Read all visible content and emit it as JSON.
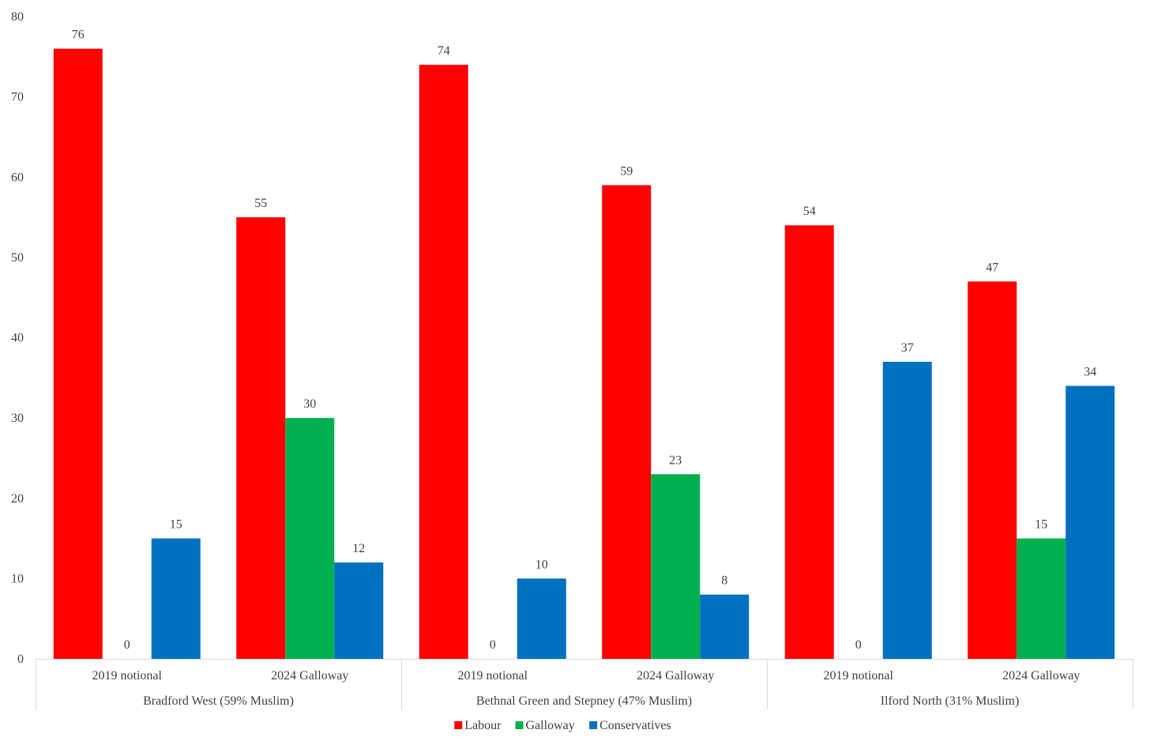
{
  "chart_data": {
    "type": "bar",
    "title": "",
    "xlabel": "",
    "ylabel": "",
    "ylim": [
      0,
      80
    ],
    "yticks": [
      0,
      10,
      20,
      30,
      40,
      50,
      60,
      70,
      80
    ],
    "grid": false,
    "legend_position": "bottom",
    "groups": [
      {
        "name": "Bradford West (59% Muslim)",
        "categories": [
          "2019 notional",
          "2024 Galloway"
        ]
      },
      {
        "name": "Bethnal Green and Stepney (47% Muslim)",
        "categories": [
          "2019 notional",
          "2024 Galloway"
        ]
      },
      {
        "name": "Ilford North (31% Muslim)",
        "categories": [
          "2019 notional",
          "2024 Galloway"
        ]
      }
    ],
    "series": [
      {
        "name": "Labour",
        "color": "#ff0000",
        "values": [
          76,
          55,
          74,
          59,
          54,
          47
        ]
      },
      {
        "name": "Galloway",
        "color": "#00b050",
        "values": [
          0,
          30,
          0,
          23,
          0,
          15
        ]
      },
      {
        "name": "Conservatives",
        "color": "#0070c0",
        "values": [
          15,
          12,
          10,
          8,
          37,
          34
        ]
      }
    ]
  }
}
